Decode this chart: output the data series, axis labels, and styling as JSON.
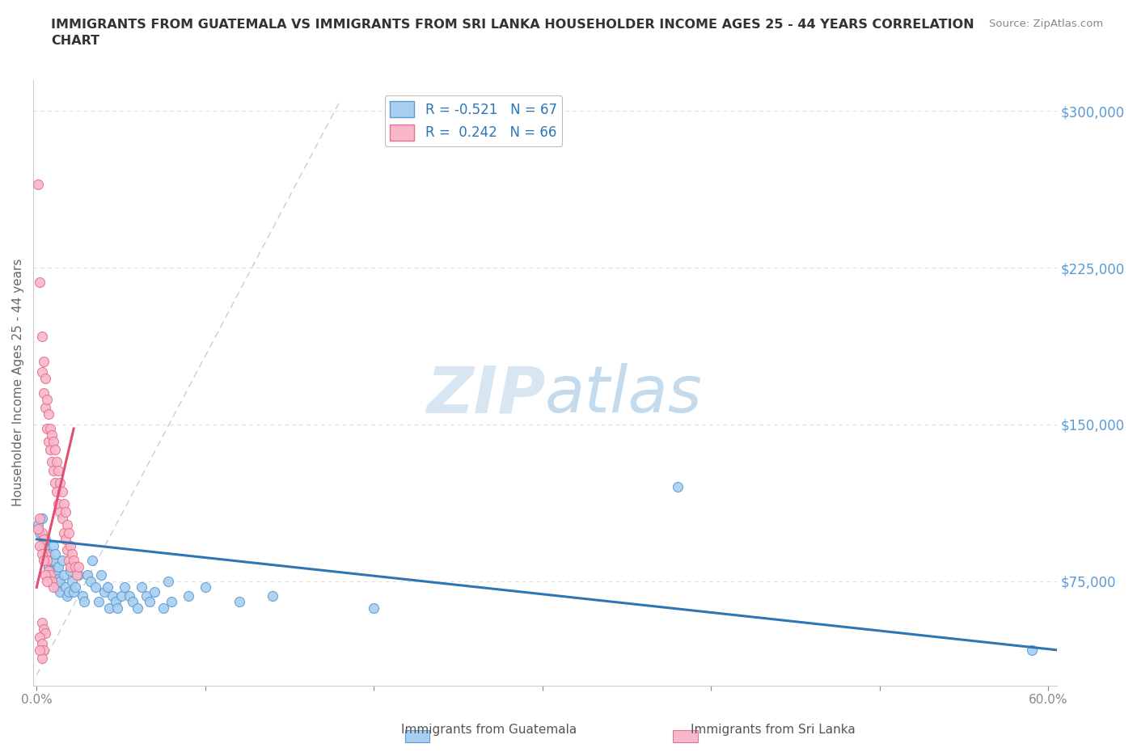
{
  "title": "IMMIGRANTS FROM GUATEMALA VS IMMIGRANTS FROM SRI LANKA HOUSEHOLDER INCOME AGES 25 - 44 YEARS CORRELATION\nCHART",
  "source_text": "Source: ZipAtlas.com",
  "ylabel": "Householder Income Ages 25 - 44 years",
  "xlim": [
    -0.002,
    0.605
  ],
  "ylim": [
    25000,
    315000
  ],
  "ytick_values": [
    75000,
    150000,
    225000,
    300000
  ],
  "ytick_labels": [
    "$75,000",
    "$150,000",
    "$225,000",
    "$300,000"
  ],
  "guatemala_color": "#a8cff0",
  "srilanka_color": "#f7b8cb",
  "guatemala_edge_color": "#5b9bd5",
  "srilanka_edge_color": "#e8708a",
  "guatemala_line_color": "#2e75b6",
  "srilanka_line_color": "#e05070",
  "diagonal_color": "#c8c8c8",
  "r_guatemala": -0.521,
  "n_guatemala": 67,
  "r_srilanka": 0.242,
  "n_srilanka": 66,
  "watermark_zip": "ZIP",
  "watermark_atlas": "atlas",
  "legend_labels": [
    "Immigrants from Guatemala",
    "Immigrants from Sri Lanka"
  ],
  "background_color": "#ffffff",
  "grid_color": "#dddddd",
  "title_color": "#333333",
  "axis_label_color": "#5b9bd5",
  "tick_label_color": "#888888",
  "guatemala_points": [
    [
      0.001,
      102000
    ],
    [
      0.002,
      98000
    ],
    [
      0.003,
      105000
    ],
    [
      0.004,
      92000
    ],
    [
      0.005,
      88000
    ],
    [
      0.005,
      95000
    ],
    [
      0.006,
      90000
    ],
    [
      0.006,
      85000
    ],
    [
      0.007,
      82000
    ],
    [
      0.007,
      88000
    ],
    [
      0.008,
      78000
    ],
    [
      0.008,
      85000
    ],
    [
      0.009,
      75000
    ],
    [
      0.009,
      80000
    ],
    [
      0.01,
      92000
    ],
    [
      0.01,
      85000
    ],
    [
      0.011,
      78000
    ],
    [
      0.011,
      88000
    ],
    [
      0.012,
      72000
    ],
    [
      0.012,
      80000
    ],
    [
      0.013,
      76000
    ],
    [
      0.013,
      82000
    ],
    [
      0.014,
      70000
    ],
    [
      0.014,
      75000
    ],
    [
      0.015,
      85000
    ],
    [
      0.016,
      78000
    ],
    [
      0.017,
      72000
    ],
    [
      0.018,
      68000
    ],
    [
      0.019,
      70000
    ],
    [
      0.02,
      80000
    ],
    [
      0.021,
      75000
    ],
    [
      0.022,
      70000
    ],
    [
      0.023,
      72000
    ],
    [
      0.025,
      78000
    ],
    [
      0.027,
      68000
    ],
    [
      0.028,
      65000
    ],
    [
      0.03,
      78000
    ],
    [
      0.032,
      75000
    ],
    [
      0.033,
      85000
    ],
    [
      0.035,
      72000
    ],
    [
      0.037,
      65000
    ],
    [
      0.038,
      78000
    ],
    [
      0.04,
      70000
    ],
    [
      0.042,
      72000
    ],
    [
      0.043,
      62000
    ],
    [
      0.045,
      68000
    ],
    [
      0.047,
      65000
    ],
    [
      0.048,
      62000
    ],
    [
      0.05,
      68000
    ],
    [
      0.052,
      72000
    ],
    [
      0.055,
      68000
    ],
    [
      0.057,
      65000
    ],
    [
      0.06,
      62000
    ],
    [
      0.062,
      72000
    ],
    [
      0.065,
      68000
    ],
    [
      0.067,
      65000
    ],
    [
      0.07,
      70000
    ],
    [
      0.075,
      62000
    ],
    [
      0.078,
      75000
    ],
    [
      0.08,
      65000
    ],
    [
      0.09,
      68000
    ],
    [
      0.1,
      72000
    ],
    [
      0.12,
      65000
    ],
    [
      0.14,
      68000
    ],
    [
      0.2,
      62000
    ],
    [
      0.38,
      120000
    ],
    [
      0.59,
      42000
    ]
  ],
  "srilanka_points": [
    [
      0.001,
      265000
    ],
    [
      0.002,
      218000
    ],
    [
      0.003,
      192000
    ],
    [
      0.003,
      175000
    ],
    [
      0.004,
      180000
    ],
    [
      0.004,
      165000
    ],
    [
      0.005,
      172000
    ],
    [
      0.005,
      158000
    ],
    [
      0.006,
      162000
    ],
    [
      0.006,
      148000
    ],
    [
      0.007,
      155000
    ],
    [
      0.007,
      142000
    ],
    [
      0.008,
      148000
    ],
    [
      0.008,
      138000
    ],
    [
      0.009,
      145000
    ],
    [
      0.009,
      132000
    ],
    [
      0.01,
      142000
    ],
    [
      0.01,
      128000
    ],
    [
      0.011,
      138000
    ],
    [
      0.011,
      122000
    ],
    [
      0.012,
      132000
    ],
    [
      0.012,
      118000
    ],
    [
      0.013,
      128000
    ],
    [
      0.013,
      112000
    ],
    [
      0.014,
      122000
    ],
    [
      0.014,
      108000
    ],
    [
      0.015,
      118000
    ],
    [
      0.015,
      105000
    ],
    [
      0.016,
      112000
    ],
    [
      0.016,
      98000
    ],
    [
      0.017,
      108000
    ],
    [
      0.017,
      95000
    ],
    [
      0.018,
      102000
    ],
    [
      0.018,
      90000
    ],
    [
      0.019,
      98000
    ],
    [
      0.019,
      85000
    ],
    [
      0.02,
      92000
    ],
    [
      0.02,
      82000
    ],
    [
      0.021,
      88000
    ],
    [
      0.022,
      85000
    ],
    [
      0.023,
      82000
    ],
    [
      0.024,
      78000
    ],
    [
      0.025,
      82000
    ],
    [
      0.003,
      98000
    ],
    [
      0.004,
      95000
    ],
    [
      0.005,
      88000
    ],
    [
      0.006,
      85000
    ],
    [
      0.007,
      80000
    ],
    [
      0.008,
      78000
    ],
    [
      0.009,
      75000
    ],
    [
      0.01,
      72000
    ],
    [
      0.002,
      92000
    ],
    [
      0.003,
      88000
    ],
    [
      0.004,
      85000
    ],
    [
      0.005,
      78000
    ],
    [
      0.006,
      75000
    ],
    [
      0.001,
      100000
    ],
    [
      0.002,
      105000
    ],
    [
      0.003,
      55000
    ],
    [
      0.004,
      52000
    ],
    [
      0.005,
      50000
    ],
    [
      0.002,
      48000
    ],
    [
      0.003,
      45000
    ],
    [
      0.004,
      42000
    ],
    [
      0.003,
      38000
    ],
    [
      0.002,
      42000
    ]
  ],
  "guat_trend_x": [
    0.0,
    0.605
  ],
  "guat_trend_y": [
    95000,
    42000
  ],
  "sri_trend_x": [
    0.0,
    0.022
  ],
  "sri_trend_y": [
    72000,
    148000
  ]
}
